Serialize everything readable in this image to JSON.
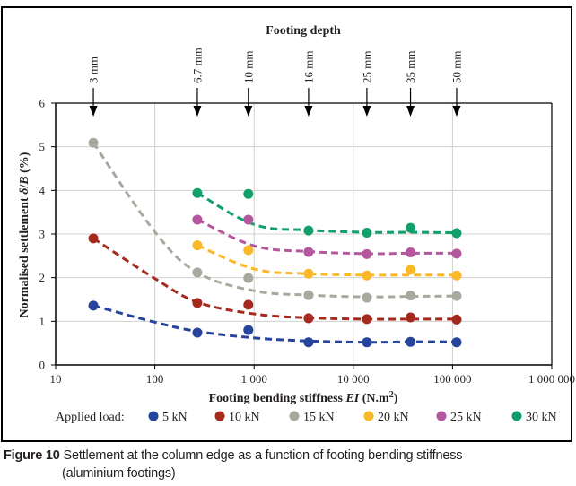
{
  "chart_data": {
    "type": "scatter",
    "title": "Footing depth",
    "xlabel": "Footing bending stiffness EI (N.m²)",
    "xlabel_parts": {
      "pre": "Footing bending stiffness ",
      "italic": "EI",
      "post": " (N.m",
      "sup": "2",
      "end": ")"
    },
    "ylabel": "Normalised settlement δ/B (%)",
    "ylabel_parts": {
      "pre": "Normalised settlement ",
      "italic1": "δ",
      "mid": "/",
      "italic2": "B",
      "post": " (%)"
    },
    "xscale": "log",
    "xlim": [
      10,
      1000000
    ],
    "ylim": [
      0,
      6
    ],
    "grid": true,
    "x_ticks": [
      10,
      100,
      1000,
      10000,
      100000,
      1000000
    ],
    "x_tick_labels": [
      "10",
      "100",
      "1 000",
      "10 000",
      "100 000",
      "1 000 000"
    ],
    "y_ticks": [
      0,
      1,
      2,
      3,
      4,
      5,
      6
    ],
    "y_tick_labels": [
      "0",
      "1",
      "2",
      "3",
      "4",
      "5",
      "6"
    ],
    "depth_markers": [
      {
        "label": "3 mm",
        "x": 24
      },
      {
        "label": "6.7 mm",
        "x": 268
      },
      {
        "label": "10 mm",
        "x": 875
      },
      {
        "label": "16 mm",
        "x": 3540
      },
      {
        "label": "25 mm",
        "x": 13700
      },
      {
        "label": "35 mm",
        "x": 37700
      },
      {
        "label": "50 mm",
        "x": 110000
      }
    ],
    "legend_title": "Applied load:",
    "legend_position": "bottom",
    "series": [
      {
        "name": "5 kN",
        "color": "#26449c",
        "x": [
          24,
          268,
          875,
          3540,
          13700,
          37700,
          110000
        ],
        "y": [
          1.36,
          0.74,
          0.8,
          0.52,
          0.52,
          0.53,
          0.52
        ],
        "trend_x": [
          24,
          100,
          268,
          1000,
          3540,
          13700,
          37700,
          110000
        ],
        "trend_y": [
          1.36,
          0.98,
          0.77,
          0.62,
          0.55,
          0.52,
          0.53,
          0.53
        ]
      },
      {
        "name": "10 kN",
        "color": "#a52a1e",
        "x": [
          24,
          268,
          875,
          3540,
          13700,
          37700,
          110000
        ],
        "y": [
          2.9,
          1.42,
          1.38,
          1.07,
          1.05,
          1.09,
          1.04
        ],
        "trend_x": [
          24,
          100,
          268,
          1000,
          3540,
          13700,
          37700,
          110000
        ],
        "trend_y": [
          2.9,
          1.98,
          1.44,
          1.17,
          1.08,
          1.05,
          1.05,
          1.05
        ]
      },
      {
        "name": "15 kN",
        "color": "#a8a89e",
        "x": [
          24,
          268,
          875,
          3540,
          13700,
          37700,
          110000
        ],
        "y": [
          5.09,
          2.12,
          1.99,
          1.6,
          1.54,
          1.59,
          1.58
        ],
        "trend_x": [
          24,
          100,
          268,
          1000,
          3540,
          13700,
          37700,
          110000
        ],
        "trend_y": [
          5.09,
          3.05,
          2.12,
          1.7,
          1.6,
          1.56,
          1.57,
          1.58
        ]
      },
      {
        "name": "20 kN",
        "color": "#fbb827",
        "x": [
          268,
          875,
          3540,
          13700,
          37700,
          110000
        ],
        "y": [
          2.74,
          2.63,
          2.09,
          2.05,
          2.18,
          2.05
        ],
        "trend_x": [
          268,
          1000,
          3540,
          13700,
          37700,
          110000
        ],
        "trend_y": [
          2.74,
          2.2,
          2.09,
          2.06,
          2.06,
          2.06
        ]
      },
      {
        "name": "25 kN",
        "color": "#b5579f",
        "x": [
          268,
          875,
          3540,
          13700,
          37700,
          110000
        ],
        "y": [
          3.33,
          3.33,
          2.59,
          2.54,
          2.58,
          2.55
        ],
        "trend_x": [
          268,
          1000,
          3540,
          13700,
          37700,
          110000
        ],
        "trend_y": [
          3.33,
          2.73,
          2.6,
          2.55,
          2.56,
          2.56
        ]
      },
      {
        "name": "30 kN",
        "color": "#12a06a",
        "x": [
          268,
          875,
          3540,
          13700,
          37700,
          110000
        ],
        "y": [
          3.94,
          3.92,
          3.08,
          3.03,
          3.14,
          3.02
        ],
        "trend_x": [
          268,
          1000,
          3540,
          13700,
          37700,
          110000
        ],
        "trend_y": [
          3.94,
          3.22,
          3.09,
          3.04,
          3.04,
          3.03
        ]
      }
    ]
  },
  "caption": {
    "figure_number": "Figure 10",
    "text_line1": " Settlement at the column edge as a function of footing bending stiffness",
    "text_line2": "(aluminium footings)"
  }
}
